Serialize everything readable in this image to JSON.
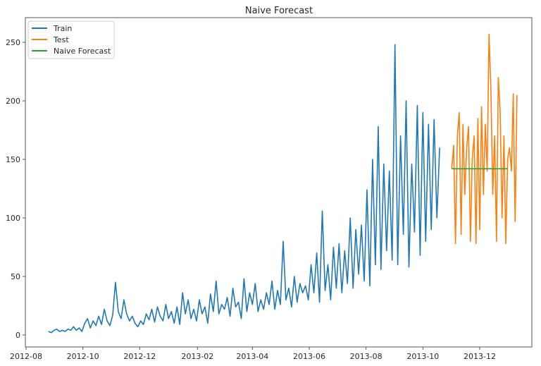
{
  "chart_data": {
    "type": "line",
    "title": "Naive Forecast",
    "xlabel": "",
    "ylabel": "",
    "ylim": [
      -10,
      265
    ],
    "xlim": [
      "2012-07-30",
      "2014-01-25"
    ],
    "x_ticks": [
      "2012-08",
      "2012-10",
      "2012-12",
      "2013-02",
      "2013-04",
      "2013-06",
      "2013-08",
      "2013-10",
      "2013-12"
    ],
    "y_ticks": [
      0,
      50,
      100,
      150,
      200,
      250
    ],
    "grid": false,
    "legend_position": "upper left",
    "legend": [
      "Train",
      "Test",
      "Naive Forecast"
    ],
    "colors": {
      "Train": "#1f77b4",
      "Test": "#ff7f0e",
      "Naive Forecast": "#2ca02c"
    },
    "series": [
      {
        "name": "Train",
        "x_start": "2012-08-25",
        "x_step_days": 3,
        "values": [
          3,
          2,
          4,
          5,
          3,
          4,
          3,
          5,
          4,
          7,
          4,
          6,
          3,
          10,
          14,
          6,
          12,
          8,
          16,
          9,
          22,
          12,
          8,
          17,
          45,
          20,
          14,
          30,
          18,
          12,
          16,
          10,
          7,
          12,
          9,
          18,
          13,
          22,
          11,
          24,
          16,
          12,
          26,
          14,
          20,
          10,
          24,
          9,
          36,
          18,
          30,
          14,
          22,
          12,
          30,
          18,
          24,
          10,
          35,
          20,
          46,
          18,
          26,
          22,
          32,
          16,
          40,
          24,
          28,
          14,
          48,
          20,
          36,
          26,
          44,
          20,
          30,
          22,
          36,
          26,
          46,
          22,
          38,
          26,
          80,
          30,
          40,
          24,
          50,
          28,
          44,
          36,
          42,
          30,
          60,
          36,
          70,
          28,
          106,
          38,
          60,
          30,
          75,
          40,
          78,
          36,
          72,
          44,
          100,
          40,
          90,
          52,
          94,
          46,
          124,
          42,
          150,
          60,
          178,
          56,
          146,
          72,
          140,
          64,
          248,
          60,
          170,
          86,
          200,
          58,
          146,
          88,
          196,
          68,
          190,
          80,
          180,
          90,
          184,
          100,
          160
        ]
      },
      {
        "name": "Test",
        "x_start": "2013-11-01",
        "x_step_days": 2,
        "values": [
          142,
          162,
          78,
          170,
          190,
          86,
          180,
          120,
          160,
          178,
          80,
          150,
          170,
          78,
          185,
          90,
          195,
          120,
          180,
          140,
          257,
          210,
          120,
          170,
          80,
          220,
          190,
          100,
          170,
          78,
          150,
          160,
          140,
          206,
          97,
          205
        ]
      },
      {
        "name": "Naive Forecast",
        "x": [
          "2013-11-01",
          "2013-12-31"
        ],
        "values": [
          142,
          142
        ]
      }
    ]
  }
}
